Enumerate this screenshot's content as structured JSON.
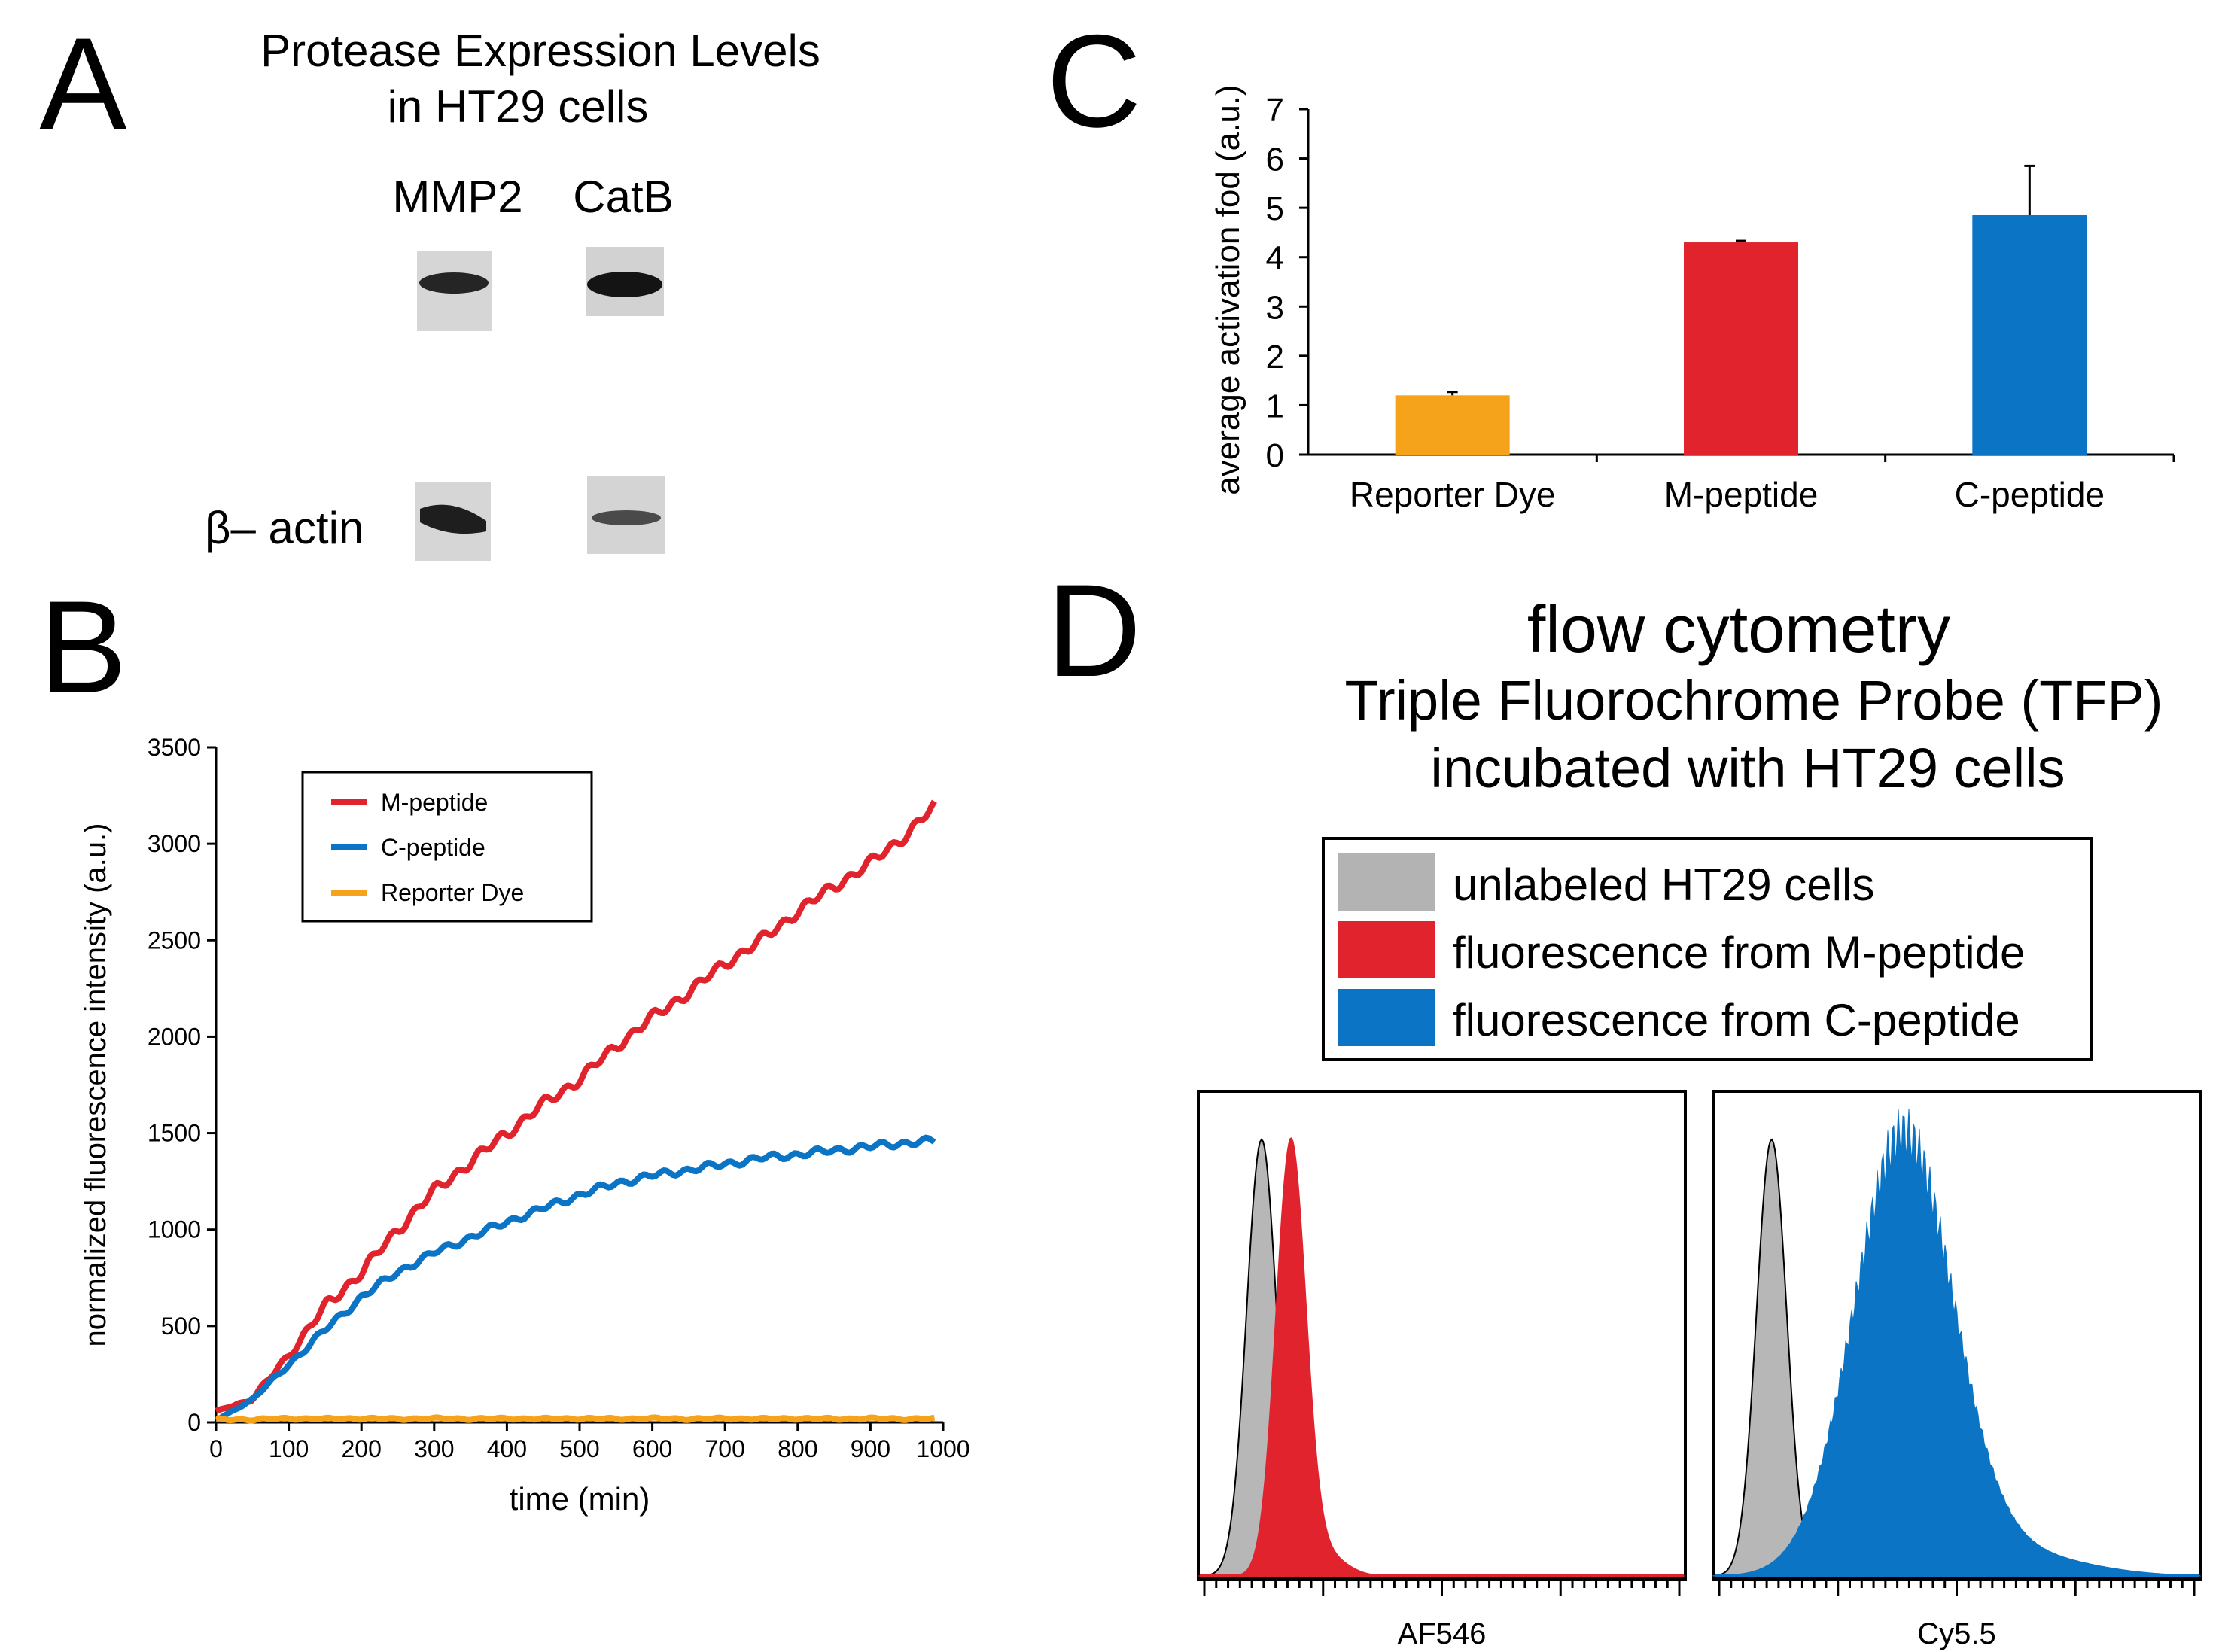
{
  "panels": {
    "a": {
      "letter": "A",
      "title_line1": "Protease Expression Levels",
      "title_line2": "in HT29 cells",
      "col1": "MMP2",
      "col2": "CatB",
      "row_label": "β– actin"
    },
    "b": {
      "letter": "B"
    },
    "c": {
      "letter": "C"
    },
    "d": {
      "letter": "D",
      "title_line1": "flow cytometry",
      "title_line2": "Triple Fluorochrome Probe (TFP)",
      "title_line3": "incubated with HT29 cells",
      "legend": [
        {
          "label": "unlabeled HT29 cells",
          "color": "#b3b3b3"
        },
        {
          "label": "fluorescence from M-peptide",
          "color": "#e0232c"
        },
        {
          "label": "fluorescence from C-peptide",
          "color": "#0b74c4"
        }
      ]
    }
  },
  "colors": {
    "red": "#e0232c",
    "blue": "#0b74c4",
    "orange": "#f5a31a",
    "gray": "#b3b3b3"
  },
  "chart_data": [
    {
      "id": "B",
      "type": "line",
      "xlabel": "time (min)",
      "ylabel": "normalized fluorescence intensity (a.u.)",
      "xlim": [
        0,
        1000
      ],
      "ylim": [
        0,
        3500
      ],
      "xticks": [
        0,
        100,
        200,
        300,
        400,
        500,
        600,
        700,
        800,
        900,
        1000
      ],
      "yticks": [
        0,
        500,
        1000,
        1500,
        2000,
        2500,
        3000,
        3500
      ],
      "x": [
        0,
        50,
        100,
        150,
        200,
        250,
        300,
        350,
        400,
        450,
        500,
        550,
        600,
        650,
        700,
        750,
        800,
        850,
        900,
        950,
        990
      ],
      "series": [
        {
          "name": "M-peptide",
          "color": "#e0232c",
          "values": [
            60,
            120,
            350,
            600,
            780,
            1000,
            1200,
            1350,
            1500,
            1650,
            1780,
            1950,
            2100,
            2230,
            2380,
            2500,
            2650,
            2780,
            2900,
            3050,
            3200
          ]
        },
        {
          "name": "C-peptide",
          "color": "#0b74c4",
          "values": [
            10,
            120,
            300,
            480,
            650,
            780,
            880,
            960,
            1040,
            1110,
            1180,
            1240,
            1280,
            1310,
            1340,
            1370,
            1390,
            1410,
            1430,
            1450,
            1460
          ]
        },
        {
          "name": "Reporter Dye",
          "color": "#f5a31a",
          "values": [
            15,
            15,
            20,
            18,
            20,
            18,
            20,
            18,
            20,
            18,
            20,
            18,
            20,
            18,
            20,
            18,
            20,
            18,
            20,
            18,
            20
          ]
        }
      ],
      "legend": [
        "M-peptide",
        "C-peptide",
        "Reporter Dye"
      ]
    },
    {
      "id": "C",
      "type": "bar",
      "ylabel": "average activation fod (a.u.)",
      "ylim": [
        0,
        7
      ],
      "yticks": [
        0,
        1,
        2,
        3,
        4,
        5,
        6,
        7
      ],
      "categories": [
        "Reporter Dye",
        "M-peptide",
        "C-peptide"
      ],
      "values": [
        1.2,
        4.3,
        4.85
      ],
      "errors": [
        0.07,
        0.03,
        1.0
      ],
      "colors": [
        "#f5a31a",
        "#e0232c",
        "#0b74c4"
      ]
    },
    {
      "id": "D1",
      "type": "area",
      "xlabel": "AF546",
      "series": [
        {
          "name": "unlabeled HT29 cells",
          "color": "#b3b3b3",
          "peak_position": 0.13,
          "relative_peak": 1.0
        },
        {
          "name": "fluorescence from M-peptide",
          "color": "#e0232c",
          "peak_position": 0.19,
          "relative_peak": 0.99
        }
      ]
    },
    {
      "id": "D2",
      "type": "area",
      "xlabel": "Cy5.5",
      "series": [
        {
          "name": "unlabeled HT29 cells",
          "color": "#b3b3b3",
          "peak_position": 0.12,
          "relative_peak": 1.0
        },
        {
          "name": "fluorescence from C-peptide",
          "color": "#0b74c4",
          "peak_position": 0.39,
          "relative_peak": 1.0
        }
      ]
    }
  ]
}
